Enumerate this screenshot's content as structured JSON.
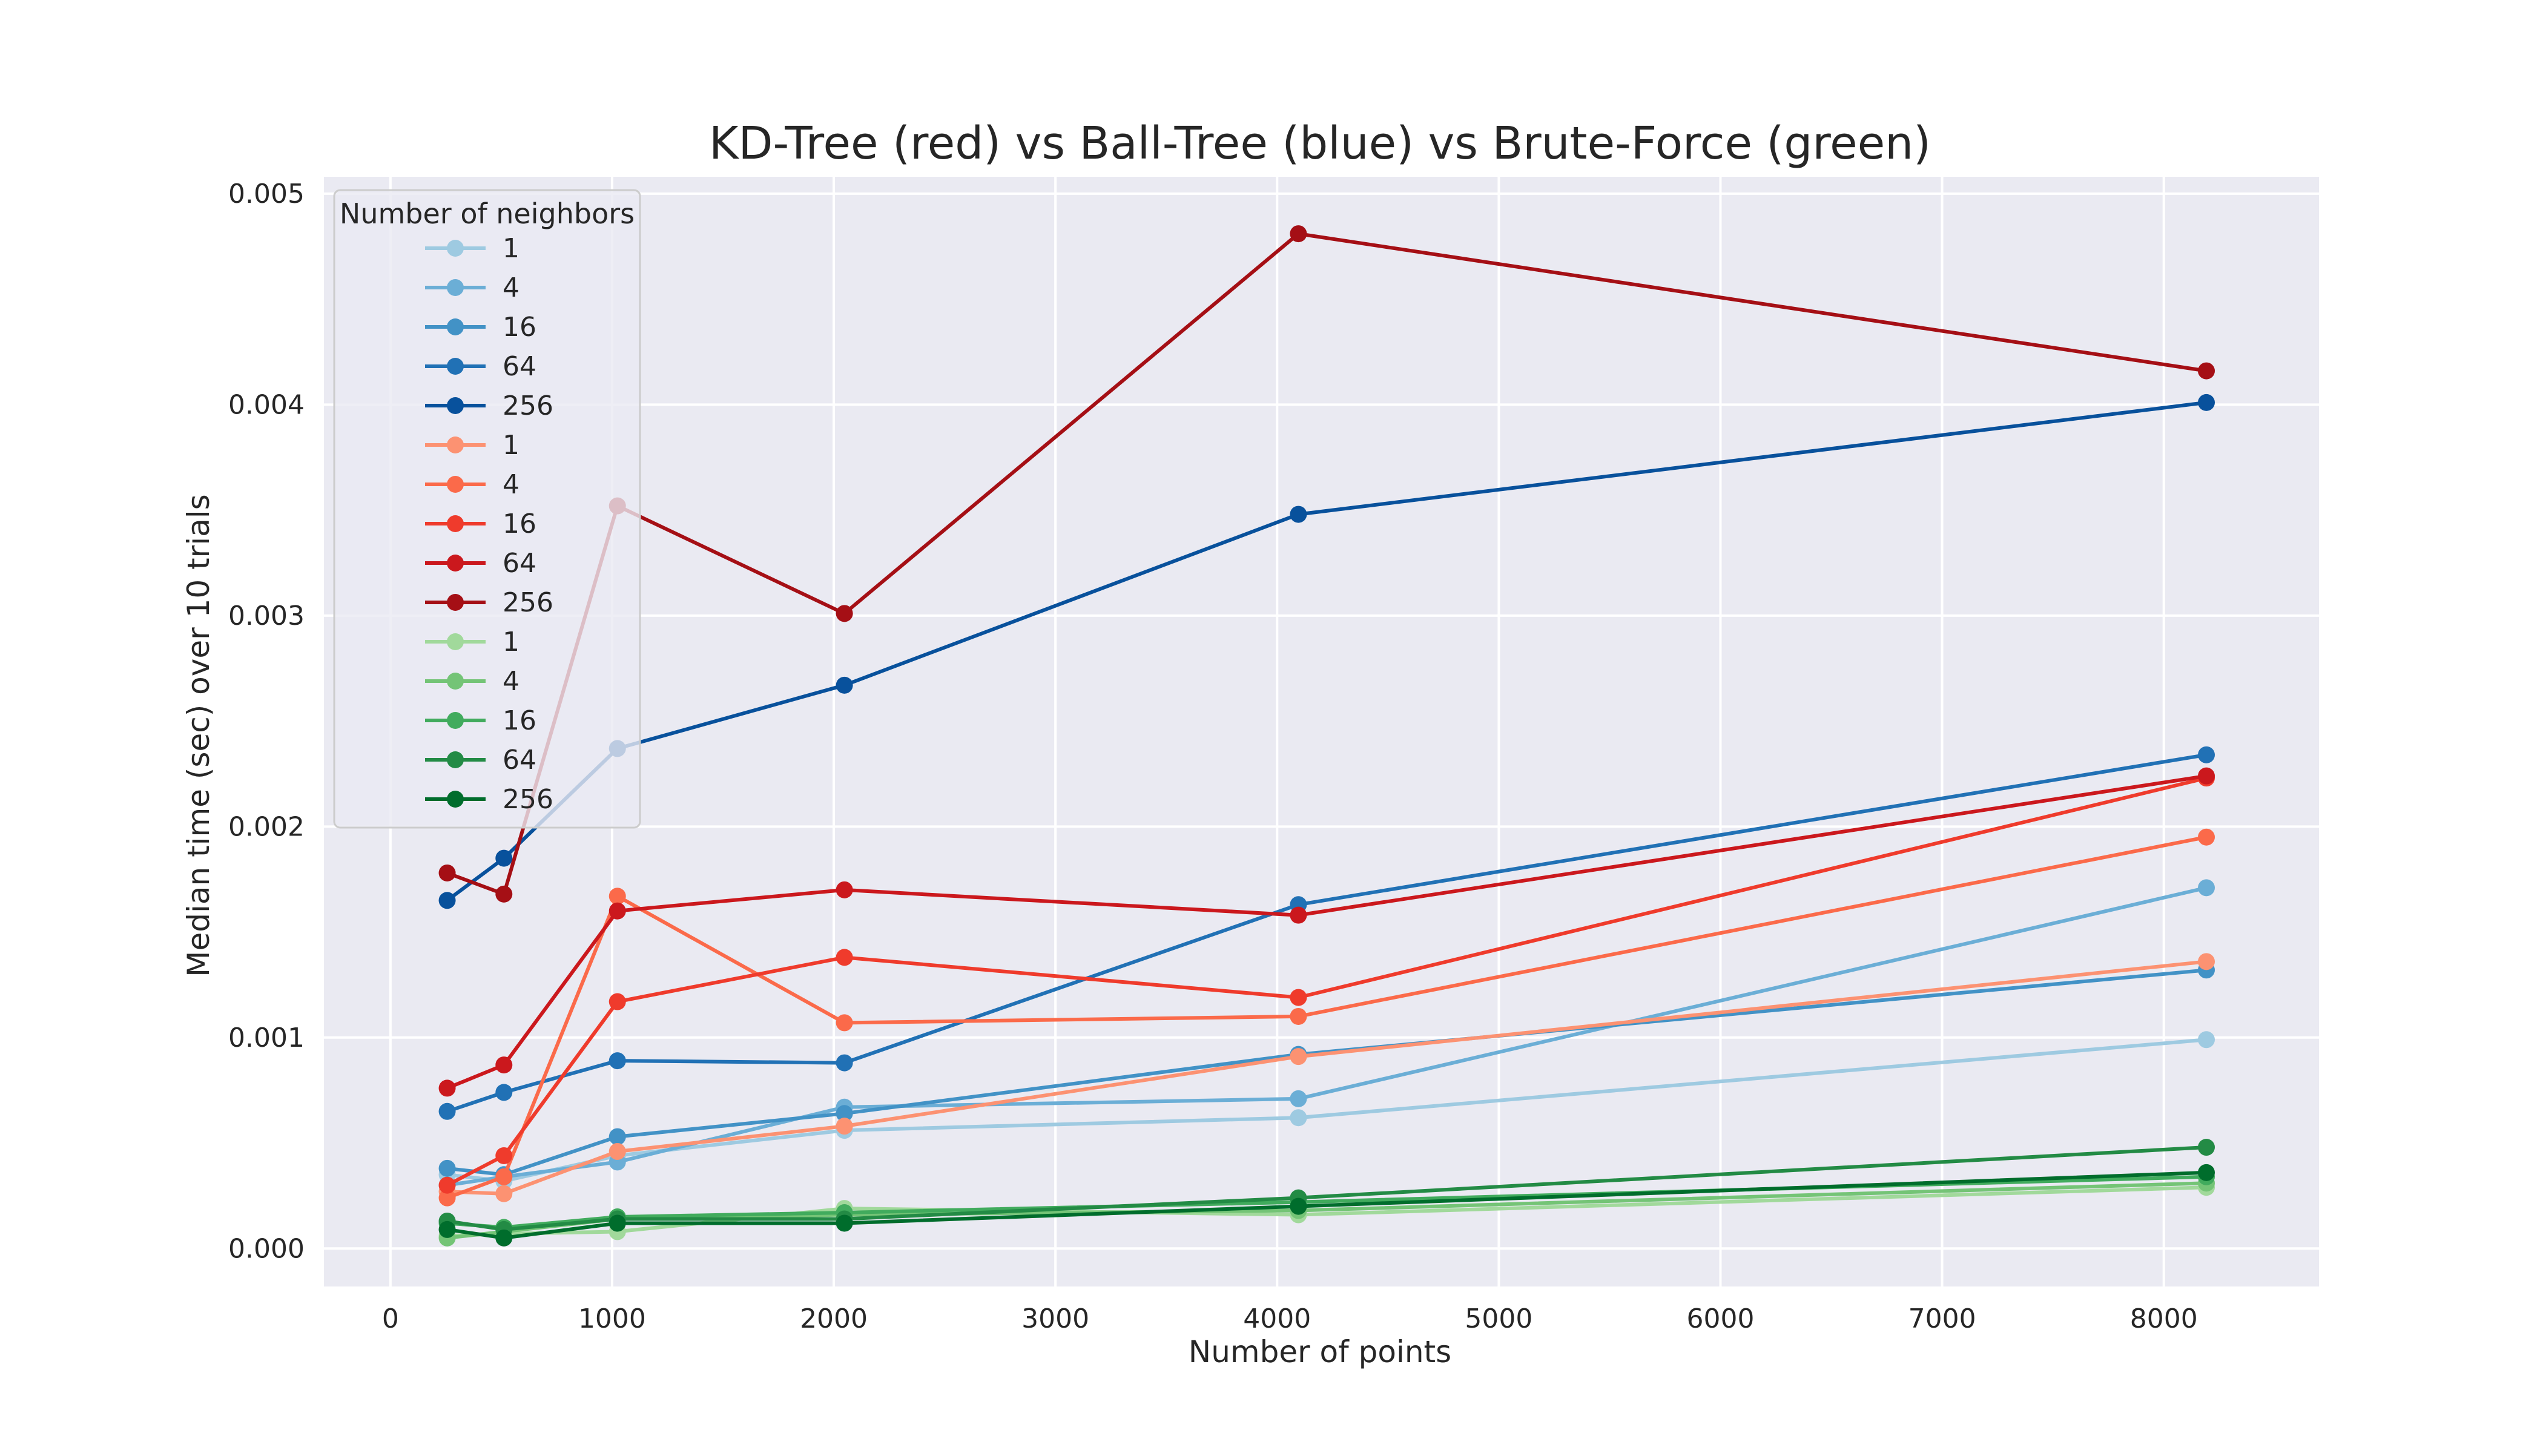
{
  "chart_data": {
    "type": "line",
    "title": "KD-Tree (red) vs Ball-Tree (blue) vs Brute-Force (green)",
    "xlabel": "Number of points",
    "ylabel": "Median time (sec) over 10 trials",
    "xlim": [
      -300,
      8700
    ],
    "ylim": [
      -0.00018,
      0.00508
    ],
    "xticks": [
      0,
      1000,
      2000,
      3000,
      4000,
      5000,
      6000,
      7000,
      8000
    ],
    "xtick_labels": [
      "0",
      "1000",
      "2000",
      "3000",
      "4000",
      "5000",
      "6000",
      "7000",
      "8000"
    ],
    "yticks": [
      0,
      0.001,
      0.002,
      0.003,
      0.004,
      0.005
    ],
    "ytick_labels": [
      "0.000",
      "0.001",
      "0.002",
      "0.003",
      "0.004",
      "0.005"
    ],
    "grid": true,
    "background": "#eaeaf2",
    "legend": {
      "title": "Number of neighbors",
      "position": "top-left"
    },
    "x": [
      256,
      512,
      1024,
      2048,
      4096,
      8192
    ],
    "series": [
      {
        "name": "1",
        "group": "Ball-Tree",
        "color": "#9ecae1",
        "values": [
          0.00035,
          0.00032,
          0.00044,
          0.00056,
          0.00062,
          0.00099
        ]
      },
      {
        "name": "4",
        "group": "Ball-Tree",
        "color": "#6baed6",
        "values": [
          0.0003,
          0.00034,
          0.00041,
          0.00067,
          0.00071,
          0.00171
        ]
      },
      {
        "name": "16",
        "group": "Ball-Tree",
        "color": "#4292c6",
        "values": [
          0.00038,
          0.00035,
          0.00053,
          0.00064,
          0.00092,
          0.00132
        ]
      },
      {
        "name": "64",
        "group": "Ball-Tree",
        "color": "#2171b5",
        "values": [
          0.00065,
          0.00074,
          0.00089,
          0.00088,
          0.00163,
          0.00234
        ]
      },
      {
        "name": "256",
        "group": "Ball-Tree",
        "color": "#08519c",
        "values": [
          0.00165,
          0.00185,
          0.00237,
          0.00267,
          0.00348,
          0.00401
        ]
      },
      {
        "name": "1",
        "group": "KD-Tree",
        "color": "#fc9272",
        "values": [
          0.00027,
          0.00026,
          0.00046,
          0.00058,
          0.00091,
          0.00136
        ]
      },
      {
        "name": "4",
        "group": "KD-Tree",
        "color": "#fb6a4a",
        "values": [
          0.00024,
          0.00034,
          0.00167,
          0.00107,
          0.0011,
          0.00195
        ]
      },
      {
        "name": "16",
        "group": "KD-Tree",
        "color": "#ef3b2c",
        "values": [
          0.0003,
          0.00044,
          0.00117,
          0.00138,
          0.00119,
          0.00223
        ]
      },
      {
        "name": "64",
        "group": "KD-Tree",
        "color": "#cb181d",
        "values": [
          0.00076,
          0.00087,
          0.0016,
          0.0017,
          0.00158,
          0.00224
        ]
      },
      {
        "name": "256",
        "group": "KD-Tree",
        "color": "#a50f15",
        "values": [
          0.00178,
          0.00168,
          0.00352,
          0.00301,
          0.00481,
          0.00416
        ]
      },
      {
        "name": "1",
        "group": "Brute-Force",
        "color": "#a1d99b",
        "values": [
          6e-05,
          7e-05,
          8e-05,
          0.00019,
          0.00016,
          0.00029
        ]
      },
      {
        "name": "4",
        "group": "Brute-Force",
        "color": "#74c476",
        "values": [
          5e-05,
          8e-05,
          0.00014,
          0.00016,
          0.00018,
          0.00031
        ]
      },
      {
        "name": "16",
        "group": "Brute-Force",
        "color": "#41ab5d",
        "values": [
          0.00012,
          0.0001,
          0.00015,
          0.00017,
          0.00022,
          0.00034
        ]
      },
      {
        "name": "64",
        "group": "Brute-Force",
        "color": "#238b45",
        "values": [
          0.00013,
          9e-05,
          0.00014,
          0.00014,
          0.00024,
          0.00048
        ]
      },
      {
        "name": "256",
        "group": "Brute-Force",
        "color": "#006d2c",
        "values": [
          9e-05,
          5e-05,
          0.00012,
          0.00012,
          0.0002,
          0.00036
        ]
      }
    ]
  }
}
